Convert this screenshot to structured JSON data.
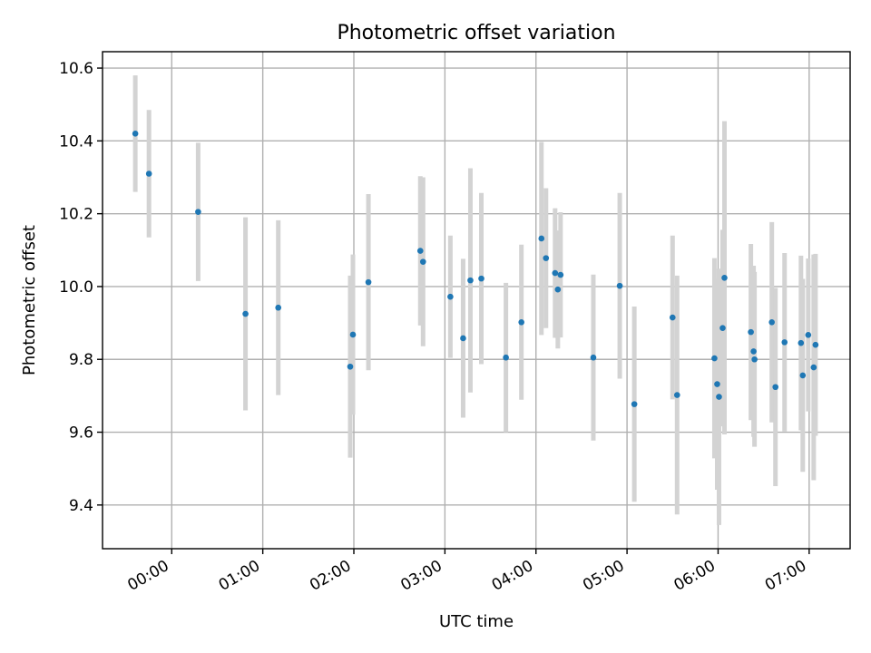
{
  "chart_data": {
    "type": "scatter",
    "title": "Photometric offset variation",
    "xlabel": "UTC time",
    "ylabel": "Photometric offset",
    "x_unit": "UTC hour",
    "xlim": [
      -0.76,
      7.45
    ],
    "ylim": [
      9.28,
      10.645
    ],
    "x_ticks": [
      {
        "value": 0,
        "label": "00:00"
      },
      {
        "value": 1,
        "label": "01:00"
      },
      {
        "value": 2,
        "label": "02:00"
      },
      {
        "value": 3,
        "label": "03:00"
      },
      {
        "value": 4,
        "label": "04:00"
      },
      {
        "value": 5,
        "label": "05:00"
      },
      {
        "value": 6,
        "label": "06:00"
      },
      {
        "value": 7,
        "label": "07:00"
      }
    ],
    "y_ticks": [
      {
        "value": 9.4,
        "label": "9.4"
      },
      {
        "value": 9.6,
        "label": "9.6"
      },
      {
        "value": 9.8,
        "label": "9.8"
      },
      {
        "value": 10.0,
        "label": "10.0"
      },
      {
        "value": 10.2,
        "label": "10.2"
      },
      {
        "value": 10.4,
        "label": "10.4"
      },
      {
        "value": 10.6,
        "label": "10.6"
      }
    ],
    "grid": true,
    "colors": {
      "point": "#1f77b4",
      "errorbar": "#d3d3d3"
    },
    "points": [
      {
        "x": -0.4,
        "y": 10.42,
        "err": 0.16
      },
      {
        "x": -0.25,
        "y": 10.31,
        "err": 0.175
      },
      {
        "x": 0.29,
        "y": 10.205,
        "err": 0.19
      },
      {
        "x": 0.81,
        "y": 9.925,
        "err": 0.265
      },
      {
        "x": 1.17,
        "y": 9.942,
        "err": 0.24
      },
      {
        "x": 1.96,
        "y": 9.78,
        "err": 0.25
      },
      {
        "x": 1.99,
        "y": 9.868,
        "err": 0.22
      },
      {
        "x": 2.16,
        "y": 10.012,
        "err": 0.242
      },
      {
        "x": 2.73,
        "y": 10.098,
        "err": 0.205
      },
      {
        "x": 2.76,
        "y": 10.068,
        "err": 0.232
      },
      {
        "x": 3.06,
        "y": 9.972,
        "err": 0.168
      },
      {
        "x": 3.2,
        "y": 9.858,
        "err": 0.218
      },
      {
        "x": 3.28,
        "y": 10.017,
        "err": 0.308
      },
      {
        "x": 3.4,
        "y": 10.022,
        "err": 0.235
      },
      {
        "x": 3.67,
        "y": 9.805,
        "err": 0.205
      },
      {
        "x": 3.84,
        "y": 9.902,
        "err": 0.213
      },
      {
        "x": 4.06,
        "y": 10.132,
        "err": 0.265
      },
      {
        "x": 4.11,
        "y": 10.078,
        "err": 0.192
      },
      {
        "x": 4.21,
        "y": 10.037,
        "err": 0.178
      },
      {
        "x": 4.24,
        "y": 9.992,
        "err": 0.162
      },
      {
        "x": 4.27,
        "y": 10.032,
        "err": 0.172
      },
      {
        "x": 4.63,
        "y": 9.805,
        "err": 0.228
      },
      {
        "x": 4.92,
        "y": 10.002,
        "err": 0.255
      },
      {
        "x": 5.08,
        "y": 9.677,
        "err": 0.268
      },
      {
        "x": 5.5,
        "y": 9.915,
        "err": 0.225
      },
      {
        "x": 5.55,
        "y": 9.702,
        "err": 0.328
      },
      {
        "x": 5.96,
        "y": 9.803,
        "err": 0.275
      },
      {
        "x": 5.99,
        "y": 9.732,
        "err": 0.29
      },
      {
        "x": 6.01,
        "y": 9.697,
        "err": 0.352
      },
      {
        "x": 6.05,
        "y": 9.886,
        "err": 0.27
      },
      {
        "x": 6.07,
        "y": 10.024,
        "err": 0.43
      },
      {
        "x": 6.36,
        "y": 9.875,
        "err": 0.242
      },
      {
        "x": 6.39,
        "y": 9.822,
        "err": 0.235
      },
      {
        "x": 6.4,
        "y": 9.8,
        "err": 0.24
      },
      {
        "x": 6.59,
        "y": 9.902,
        "err": 0.275
      },
      {
        "x": 6.63,
        "y": 9.724,
        "err": 0.272
      },
      {
        "x": 6.73,
        "y": 9.847,
        "err": 0.245
      },
      {
        "x": 6.91,
        "y": 9.845,
        "err": 0.24
      },
      {
        "x": 6.93,
        "y": 9.756,
        "err": 0.265
      },
      {
        "x": 6.99,
        "y": 9.867,
        "err": 0.21
      },
      {
        "x": 7.05,
        "y": 9.778,
        "err": 0.31
      },
      {
        "x": 7.07,
        "y": 9.84,
        "err": 0.25
      }
    ]
  }
}
